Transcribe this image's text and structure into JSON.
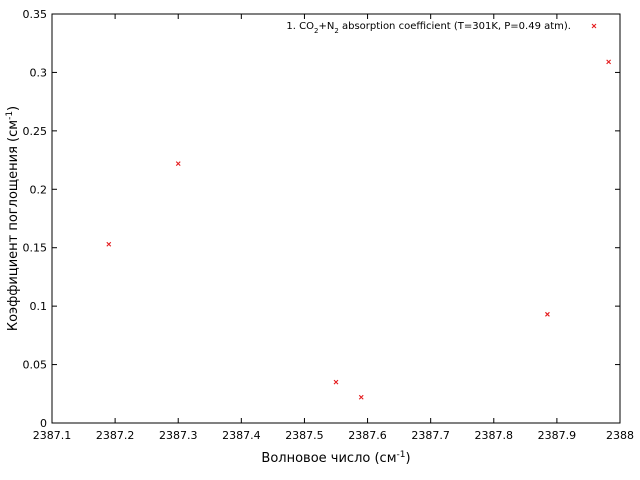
{
  "chart_data": {
    "type": "scatter",
    "title": "",
    "xlabel": {
      "main": "Волновое число (см",
      "sup": "-1",
      "tail": ")"
    },
    "ylabel": {
      "main": "Коэффициент поглощения (см",
      "sup": "-1",
      "tail": ")"
    },
    "xlim": [
      2387.1,
      2388.0
    ],
    "ylim": [
      0,
      0.35
    ],
    "x_ticks": [
      2387.1,
      2387.2,
      2387.3,
      2387.4,
      2387.5,
      2387.6,
      2387.7,
      2387.8,
      2387.9,
      2388.0
    ],
    "x_tick_labels": [
      "2387.1",
      "2387.2",
      "2387.3",
      "2387.4",
      "2387.5",
      "2387.6",
      "2387.7",
      "2387.8",
      "2387.9",
      "2388"
    ],
    "y_ticks": [
      0,
      0.05,
      0.1,
      0.15,
      0.2,
      0.25,
      0.3,
      0.35
    ],
    "y_tick_labels": [
      "0",
      "0.05",
      "0.1",
      "0.15",
      "0.2",
      "0.25",
      "0.3",
      "0.35"
    ],
    "grid": false,
    "legend_position": "top-right",
    "series": [
      {
        "name": "1. CO2+N2 absorption coefficient (T=301K, P=0.49 atm).",
        "legend_parts": [
          {
            "t": "1. CO"
          },
          {
            "t": "2",
            "sub": true
          },
          {
            "t": "+N"
          },
          {
            "t": "2",
            "sub": true
          },
          {
            "t": " absorption coefficient (T=301K, P=0.49 atm)."
          }
        ],
        "color": "#e41a1c",
        "marker": "x",
        "points": [
          {
            "x": 2387.19,
            "y": 0.153
          },
          {
            "x": 2387.3,
            "y": 0.222
          },
          {
            "x": 2387.55,
            "y": 0.035
          },
          {
            "x": 2387.59,
            "y": 0.022
          },
          {
            "x": 2387.885,
            "y": 0.093
          },
          {
            "x": 2387.982,
            "y": 0.309
          }
        ]
      }
    ]
  }
}
